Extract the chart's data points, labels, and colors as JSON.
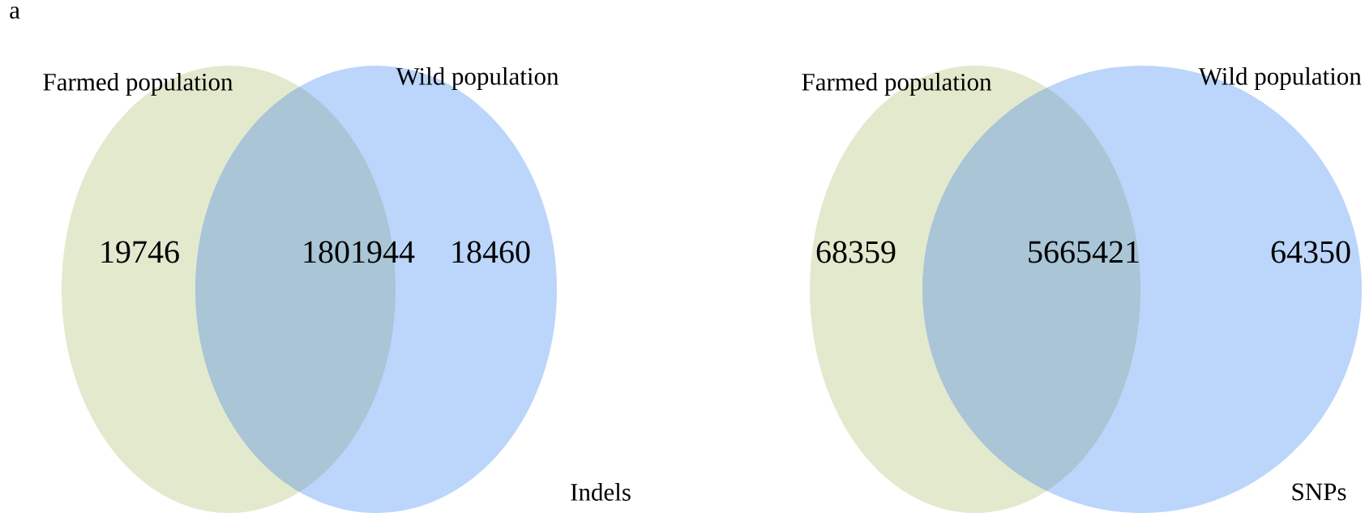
{
  "chart_data": [
    {
      "type": "other",
      "title": "Indels",
      "categories": [
        "Farmed population",
        null,
        "Wild population"
      ],
      "values": [
        19746,
        1801944,
        18460
      ],
      "colors": [
        "#e3e9cd",
        "#a9c5d6",
        "#bcd5fa"
      ],
      "data_labels": true,
      "annotations": [
        "a"
      ]
    },
    {
      "type": "other",
      "title": "SNPs",
      "categories": [
        "Farmed population",
        null,
        "Wild population"
      ],
      "values": [
        68359,
        5665421,
        64350
      ],
      "colors": [
        "#e3e9cd",
        "#a9c5d6",
        "#bcd5fa"
      ],
      "data_labels": true
    }
  ]
}
